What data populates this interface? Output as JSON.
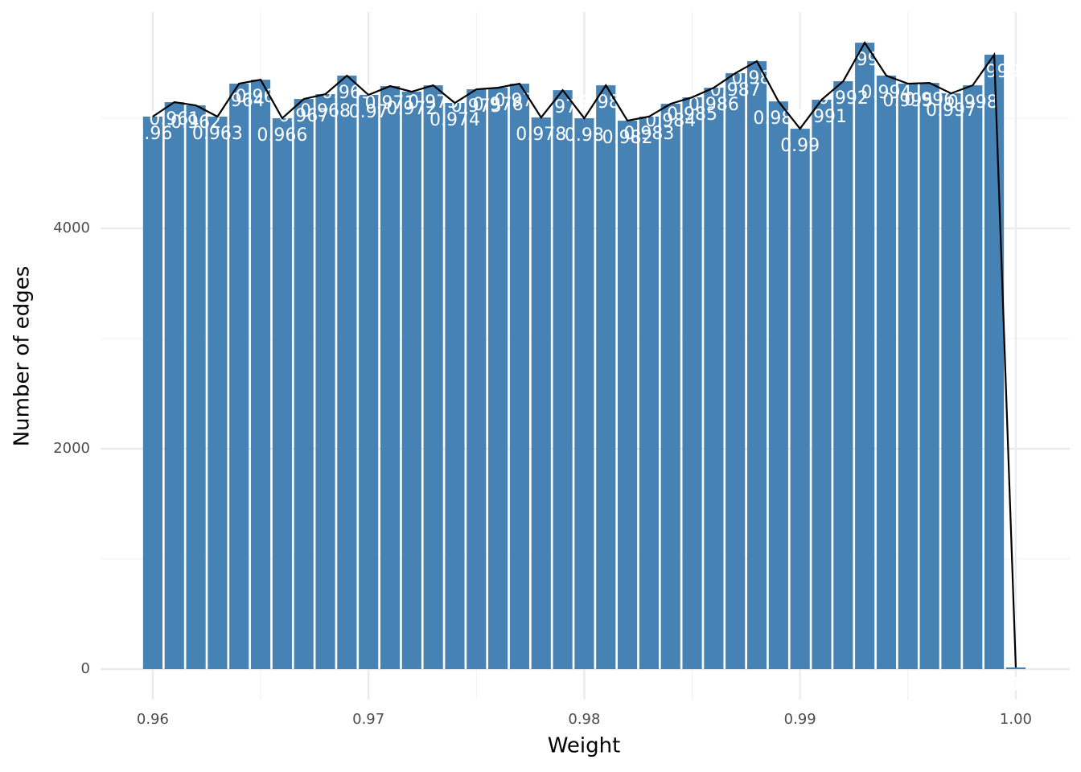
{
  "chart_data": {
    "type": "bar",
    "x_label": "Weight",
    "y_label": "Number of edges",
    "x": [
      0.96,
      0.961,
      0.962,
      0.963,
      0.964,
      0.965,
      0.966,
      0.967,
      0.968,
      0.969,
      0.97,
      0.971,
      0.972,
      0.973,
      0.974,
      0.975,
      0.976,
      0.977,
      0.978,
      0.979,
      0.98,
      0.981,
      0.982,
      0.983,
      0.984,
      0.985,
      0.986,
      0.987,
      0.988,
      0.989,
      0.99,
      0.991,
      0.992,
      0.993,
      0.994,
      0.995,
      0.996,
      0.997,
      0.998,
      0.999,
      1
    ],
    "values": [
      5015,
      5146,
      5117,
      5015,
      5314,
      5350,
      5000,
      5175,
      5219,
      5387,
      5212,
      5292,
      5241,
      5299,
      5139,
      5263,
      5277,
      5314,
      5007,
      5255,
      5000,
      5299,
      4978,
      5015,
      5131,
      5190,
      5277,
      5409,
      5518,
      5153,
      4905,
      5168,
      5336,
      5686,
      5387,
      5314,
      5321,
      5226,
      5299,
      5577,
      15
    ],
    "color": "#4682b4",
    "line_color": "#000000",
    "label_color": "#ffffff",
    "xlim": [
      0.95758,
      1.0025
    ],
    "ylim": [
      -277,
      5964
    ],
    "xticks": [
      0.96,
      0.97,
      0.98,
      0.99,
      {
        "value": 1,
        "label": "1.00"
      }
    ],
    "yticks": [
      0,
      2000,
      4000
    ],
    "minor_xticks": [
      0.965,
      0.975,
      0.985,
      0.995
    ],
    "minor_yticks": [
      1000,
      3000,
      5000
    ],
    "grid": true
  }
}
